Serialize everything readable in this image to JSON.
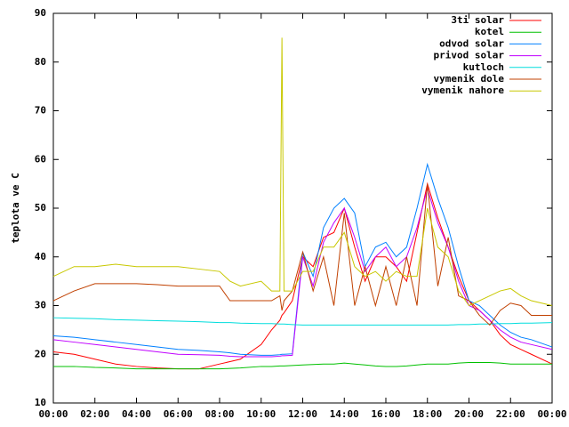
{
  "chart_data": {
    "type": "line",
    "ylabel": "teplota ve C",
    "xlim": [
      0,
      24
    ],
    "xticks": [
      {
        "value": 0,
        "label": "00:00"
      },
      {
        "value": 2,
        "label": "02:00"
      },
      {
        "value": 4,
        "label": "04:00"
      },
      {
        "value": 6,
        "label": "06:00"
      },
      {
        "value": 8,
        "label": "08:00"
      },
      {
        "value": 10,
        "label": "10:00"
      },
      {
        "value": 12,
        "label": "12:00"
      },
      {
        "value": 14,
        "label": "14:00"
      },
      {
        "value": 16,
        "label": "16:00"
      },
      {
        "value": 18,
        "label": "18:00"
      },
      {
        "value": 20,
        "label": "20:00"
      },
      {
        "value": 22,
        "label": "22:00"
      },
      {
        "value": 24,
        "label": "00:00"
      }
    ],
    "ylim": [
      10,
      90
    ],
    "yticks": [
      10,
      20,
      30,
      40,
      50,
      60,
      70,
      80,
      90
    ],
    "legend": "top-right",
    "x": [
      0,
      1,
      2,
      3,
      4,
      5,
      6,
      7,
      8,
      8.5,
      9,
      10,
      10.5,
      10.9,
      11,
      11.1,
      11.5,
      12,
      12.5,
      13,
      13.5,
      14,
      14.5,
      15,
      15.5,
      16,
      16.5,
      17,
      17.5,
      18,
      18.5,
      19,
      19.5,
      20,
      20.5,
      21,
      21.5,
      22,
      22.5,
      23,
      24
    ],
    "series": [
      {
        "name": "3ti solar",
        "color": "#ff0000",
        "values": [
          20.5,
          20,
          19,
          18,
          17.5,
          17.2,
          17,
          17,
          18,
          18.5,
          19,
          22,
          25,
          27,
          28,
          28.5,
          31,
          40,
          38,
          44,
          45,
          50,
          42,
          35,
          40,
          40,
          38,
          35,
          45,
          55,
          48,
          42,
          36,
          31,
          29,
          27,
          24,
          22,
          21,
          20,
          18
        ]
      },
      {
        "name": "kotel",
        "color": "#00c000",
        "values": [
          17.5,
          17.5,
          17.3,
          17.2,
          17,
          17,
          17,
          17,
          17,
          17.1,
          17.2,
          17.5,
          17.5,
          17.6,
          17.6,
          17.6,
          17.7,
          17.8,
          17.9,
          18,
          18,
          18.2,
          18,
          17.8,
          17.6,
          17.5,
          17.5,
          17.6,
          17.8,
          18,
          18,
          18,
          18.2,
          18.3,
          18.3,
          18.3,
          18.2,
          18,
          18,
          18,
          18
        ]
      },
      {
        "name": "odvod solar",
        "color": "#0080ff",
        "values": [
          23.8,
          23.5,
          23,
          22.5,
          22,
          21.5,
          21,
          20.8,
          20.5,
          20.3,
          20,
          19.8,
          19.8,
          19.9,
          20,
          20,
          20.1,
          41,
          36,
          46,
          50,
          52,
          49,
          38,
          42,
          43,
          40,
          42,
          50,
          59,
          52,
          46,
          38,
          31,
          30,
          28,
          26,
          24.5,
          23.5,
          23,
          21.5
        ]
      },
      {
        "name": "privod solar",
        "color": "#c000ff",
        "values": [
          23,
          22.5,
          22,
          21.5,
          21,
          20.5,
          20,
          19.9,
          19.8,
          19.6,
          19.5,
          19.5,
          19.5,
          19.6,
          19.7,
          19.7,
          19.8,
          40,
          34,
          43,
          47,
          50,
          44,
          37,
          40,
          42,
          38,
          40,
          46,
          54,
          47,
          42,
          35,
          30,
          29,
          27,
          25,
          23.5,
          22.5,
          22,
          21
        ]
      },
      {
        "name": "kutloch",
        "color": "#00dddd",
        "values": [
          27.5,
          27.4,
          27.3,
          27.1,
          27,
          26.9,
          26.8,
          26.7,
          26.5,
          26.5,
          26.4,
          26.3,
          26.3,
          26.2,
          26.2,
          26.2,
          26.1,
          26,
          26,
          26,
          26,
          26,
          26,
          26,
          26,
          26,
          26,
          26,
          26,
          26,
          26,
          26,
          26.1,
          26.1,
          26.2,
          26.2,
          26.3,
          26.3,
          26.4,
          26.4,
          26.5
        ]
      },
      {
        "name": "vymenik dole",
        "color": "#c04000",
        "values": [
          31,
          33,
          34.5,
          34.5,
          34.5,
          34.3,
          34,
          34,
          34,
          31,
          31,
          31,
          31,
          32,
          29,
          31,
          33,
          41,
          33,
          40,
          30,
          49,
          30,
          38,
          30,
          38,
          30,
          40,
          30,
          55,
          34,
          44,
          32,
          31,
          28,
          26,
          29,
          30.5,
          30,
          28,
          28
        ]
      },
      {
        "name": "vymenik nahore",
        "color": "#c8c800",
        "values": [
          36,
          38,
          38,
          38.5,
          38,
          38,
          38,
          37.5,
          37,
          35,
          34,
          35,
          33,
          33,
          85,
          33,
          33,
          37,
          37,
          42,
          42,
          45,
          38,
          36,
          37,
          35,
          37,
          36,
          36,
          50,
          42,
          40,
          33,
          30,
          31,
          32,
          33,
          33.5,
          32,
          31,
          30
        ]
      }
    ]
  }
}
